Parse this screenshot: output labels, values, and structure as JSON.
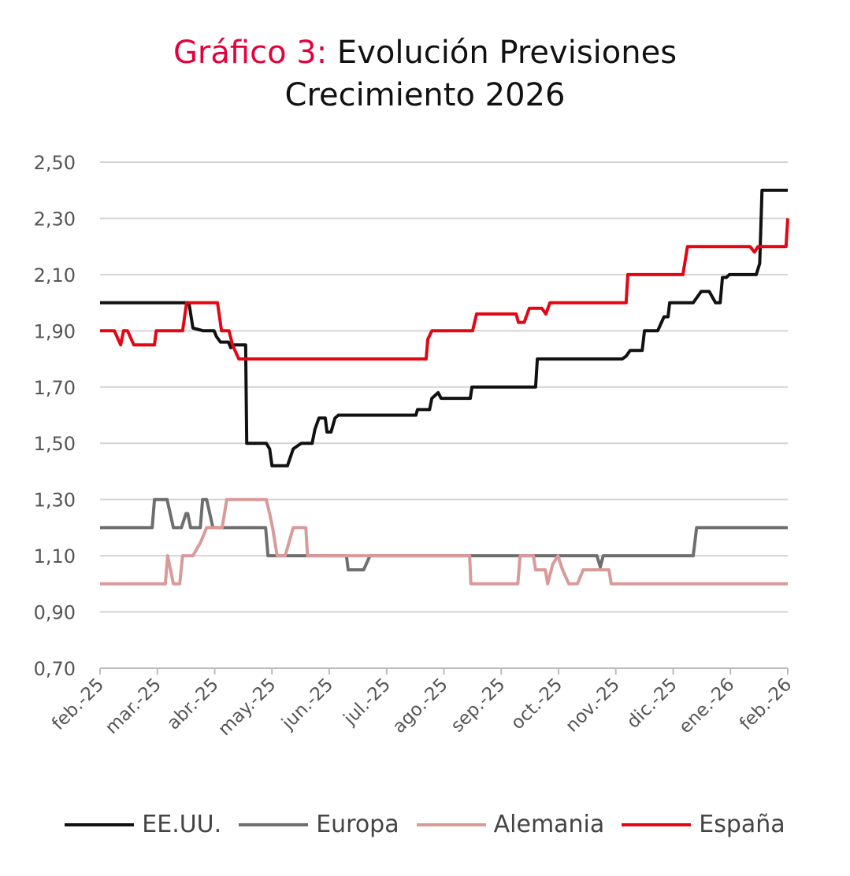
{
  "title": {
    "accent": "Gráfico 3:",
    "rest_line1": " Evolución Previsiones",
    "line2": "Crecimiento 2026"
  },
  "chart_data": {
    "type": "line",
    "title": "Gráfico 3: Evolución Previsiones Crecimiento 2026",
    "xlabel": "",
    "ylabel": "",
    "ylim": [
      0.7,
      2.5
    ],
    "yticks": [
      "0,70",
      "0,90",
      "1,10",
      "1,30",
      "1,50",
      "1,70",
      "1,90",
      "2,10",
      "2,30",
      "2,50"
    ],
    "ytick_values": [
      0.7,
      0.9,
      1.1,
      1.3,
      1.5,
      1.7,
      1.9,
      2.1,
      2.3,
      2.5
    ],
    "categories": [
      "feb.-25",
      "mar.-25",
      "abr.-25",
      "may.-25",
      "jun.-25",
      "jul.-25",
      "ago.-25",
      "sep.-25",
      "oct.-25",
      "nov.-25",
      "dic.-25",
      "ene.-26",
      "feb.-26"
    ],
    "grid": true,
    "legend_position": "bottom",
    "series": [
      {
        "name": "EE.UU.",
        "color": "#111111",
        "points": [
          [
            0,
            2.0
          ],
          [
            1.55,
            2.0
          ],
          [
            1.62,
            1.91
          ],
          [
            1.8,
            1.9
          ],
          [
            1.99,
            1.9
          ],
          [
            2.03,
            1.88
          ],
          [
            2.1,
            1.86
          ],
          [
            2.24,
            1.86
          ],
          [
            2.28,
            1.84
          ],
          [
            2.34,
            1.85
          ],
          [
            2.54,
            1.85
          ],
          [
            2.56,
            1.5
          ],
          [
            2.9,
            1.5
          ],
          [
            2.96,
            1.48
          ],
          [
            3.0,
            1.42
          ],
          [
            3.27,
            1.42
          ],
          [
            3.37,
            1.48
          ],
          [
            3.51,
            1.5
          ],
          [
            3.7,
            1.5
          ],
          [
            3.75,
            1.55
          ],
          [
            3.82,
            1.59
          ],
          [
            3.93,
            1.59
          ],
          [
            3.96,
            1.54
          ],
          [
            4.03,
            1.54
          ],
          [
            4.1,
            1.59
          ],
          [
            4.16,
            1.6
          ],
          [
            5.51,
            1.6
          ],
          [
            5.54,
            1.62
          ],
          [
            5.75,
            1.62
          ],
          [
            5.79,
            1.66
          ],
          [
            5.9,
            1.68
          ],
          [
            5.95,
            1.66
          ],
          [
            6.46,
            1.66
          ],
          [
            6.49,
            1.7
          ],
          [
            7.6,
            1.7
          ],
          [
            7.63,
            1.8
          ],
          [
            9.11,
            1.8
          ],
          [
            9.18,
            1.81
          ],
          [
            9.25,
            1.83
          ],
          [
            9.46,
            1.83
          ],
          [
            9.5,
            1.9
          ],
          [
            9.73,
            1.9
          ],
          [
            9.84,
            1.95
          ],
          [
            9.91,
            1.95
          ],
          [
            9.94,
            2.0
          ],
          [
            10.35,
            2.0
          ],
          [
            10.49,
            2.04
          ],
          [
            10.63,
            2.04
          ],
          [
            10.74,
            2.0
          ],
          [
            10.82,
            2.0
          ],
          [
            10.86,
            2.09
          ],
          [
            10.93,
            2.09
          ],
          [
            10.98,
            2.1
          ],
          [
            11.45,
            2.1
          ],
          [
            11.51,
            2.14
          ],
          [
            11.55,
            2.4
          ],
          [
            12,
            2.4
          ]
        ]
      },
      {
        "name": "Europa",
        "color": "#6e6e6e",
        "points": [
          [
            0,
            1.2
          ],
          [
            0.91,
            1.2
          ],
          [
            0.95,
            1.3
          ],
          [
            1.17,
            1.3
          ],
          [
            1.28,
            1.2
          ],
          [
            1.42,
            1.2
          ],
          [
            1.5,
            1.25
          ],
          [
            1.53,
            1.25
          ],
          [
            1.58,
            1.2
          ],
          [
            1.75,
            1.2
          ],
          [
            1.79,
            1.3
          ],
          [
            1.86,
            1.3
          ],
          [
            1.97,
            1.2
          ],
          [
            2.89,
            1.2
          ],
          [
            2.93,
            1.1
          ],
          [
            4.3,
            1.1
          ],
          [
            4.33,
            1.05
          ],
          [
            4.6,
            1.05
          ],
          [
            4.71,
            1.1
          ],
          [
            8.67,
            1.1
          ],
          [
            8.73,
            1.06
          ],
          [
            8.78,
            1.1
          ],
          [
            10.35,
            1.1
          ],
          [
            10.41,
            1.2
          ],
          [
            12,
            1.2
          ]
        ]
      },
      {
        "name": "Alemania",
        "color": "#d99a9a",
        "points": [
          [
            0,
            1.0
          ],
          [
            1.14,
            1.0
          ],
          [
            1.18,
            1.1
          ],
          [
            1.28,
            1.0
          ],
          [
            1.39,
            1.0
          ],
          [
            1.44,
            1.1
          ],
          [
            1.62,
            1.1
          ],
          [
            1.76,
            1.15
          ],
          [
            1.86,
            1.2
          ],
          [
            2.13,
            1.2
          ],
          [
            2.21,
            1.3
          ],
          [
            2.9,
            1.3
          ],
          [
            2.96,
            1.25
          ],
          [
            3.01,
            1.2
          ],
          [
            3.09,
            1.1
          ],
          [
            3.23,
            1.1
          ],
          [
            3.37,
            1.2
          ],
          [
            3.59,
            1.2
          ],
          [
            3.62,
            1.1
          ],
          [
            6.45,
            1.1
          ],
          [
            6.47,
            1.0
          ],
          [
            7.29,
            1.0
          ],
          [
            7.33,
            1.1
          ],
          [
            7.56,
            1.1
          ],
          [
            7.6,
            1.05
          ],
          [
            7.77,
            1.05
          ],
          [
            7.81,
            1.0
          ],
          [
            7.9,
            1.07
          ],
          [
            7.99,
            1.1
          ],
          [
            8.07,
            1.05
          ],
          [
            8.18,
            1.0
          ],
          [
            8.33,
            1.0
          ],
          [
            8.43,
            1.05
          ],
          [
            8.88,
            1.05
          ],
          [
            8.92,
            1.0
          ],
          [
            12,
            1.0
          ]
        ]
      },
      {
        "name": "España",
        "color": "#e30613",
        "points": [
          [
            0,
            1.9
          ],
          [
            0.25,
            1.9
          ],
          [
            0.36,
            1.85
          ],
          [
            0.41,
            1.9
          ],
          [
            0.48,
            1.9
          ],
          [
            0.59,
            1.85
          ],
          [
            0.95,
            1.85
          ],
          [
            0.98,
            1.9
          ],
          [
            1.44,
            1.9
          ],
          [
            1.51,
            2.0
          ],
          [
            2.05,
            2.0
          ],
          [
            2.12,
            1.9
          ],
          [
            2.25,
            1.9
          ],
          [
            2.31,
            1.85
          ],
          [
            2.42,
            1.8
          ],
          [
            5.69,
            1.8
          ],
          [
            5.72,
            1.87
          ],
          [
            5.79,
            1.9
          ],
          [
            6.5,
            1.9
          ],
          [
            6.57,
            1.96
          ],
          [
            7.26,
            1.96
          ],
          [
            7.3,
            1.93
          ],
          [
            7.4,
            1.93
          ],
          [
            7.49,
            1.98
          ],
          [
            7.71,
            1.98
          ],
          [
            7.78,
            1.96
          ],
          [
            7.85,
            2.0
          ],
          [
            9.18,
            2.0
          ],
          [
            9.21,
            2.1
          ],
          [
            10.17,
            2.1
          ],
          [
            10.25,
            2.2
          ],
          [
            11.34,
            2.2
          ],
          [
            11.42,
            2.18
          ],
          [
            11.48,
            2.2
          ],
          [
            11.97,
            2.2
          ],
          [
            12,
            2.3
          ]
        ]
      }
    ]
  }
}
